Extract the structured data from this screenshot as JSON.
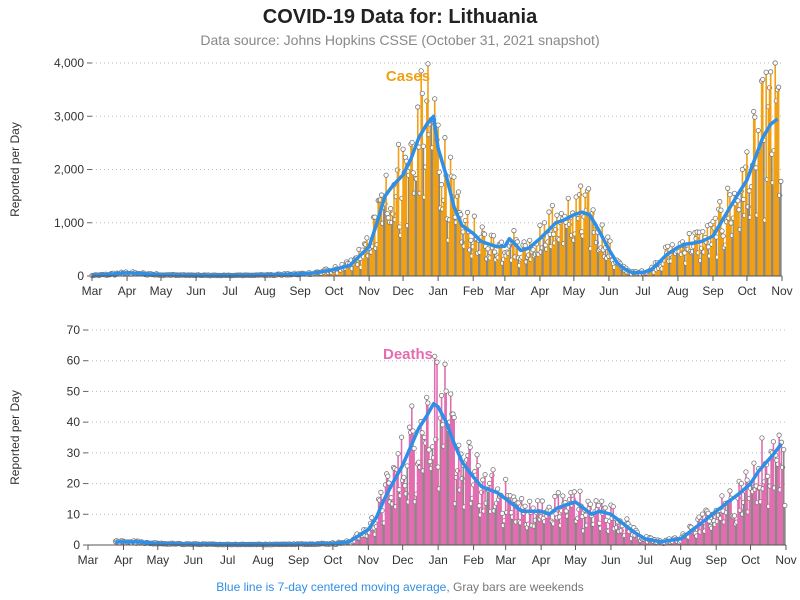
{
  "title": "COVID-19 Data for: Lithuania",
  "subtitle": "Data source: Johns Hopkins CSSE (October 31, 2021 snapshot)",
  "footnote": {
    "blue_part": "Blue line is 7-day centered moving average,",
    "gray_part": "Gray bars are weekends"
  },
  "colors": {
    "cases_bar": "#f0a015",
    "deaths_bar": "#e36db0",
    "moving_average": "#2f8fe6",
    "weekend_bar": "#888888"
  },
  "chart_data": [
    {
      "type": "bar",
      "label": "Cases",
      "label_color": "#f0a015",
      "ylabel": "Reported per Day",
      "ylim": [
        0,
        4000
      ],
      "yticks": [
        0,
        1000,
        2000,
        3000,
        4000
      ],
      "ytick_labels": [
        "0",
        "1,000",
        "2,000",
        "3,000",
        "4,000"
      ],
      "x_range": [
        "2020-03-01",
        "2021-11-01"
      ],
      "xtick_labels": [
        "Mar",
        "Apr",
        "May",
        "Jun",
        "Jul",
        "Aug",
        "Sep",
        "Oct",
        "Nov",
        "Dec",
        "Jan",
        "Feb",
        "Mar",
        "Apr",
        "May",
        "Jun",
        "Jul",
        "Aug",
        "Sep",
        "Oct",
        "Nov"
      ],
      "xtick_dates": [
        "2020-03-01",
        "2020-04-01",
        "2020-05-01",
        "2020-06-01",
        "2020-07-01",
        "2020-08-01",
        "2020-09-01",
        "2020-10-01",
        "2020-11-01",
        "2020-12-01",
        "2021-01-01",
        "2021-02-01",
        "2021-03-01",
        "2021-04-01",
        "2021-05-01",
        "2021-06-01",
        "2021-07-01",
        "2021-08-01",
        "2021-09-01",
        "2021-10-01",
        "2021-11-01"
      ],
      "moving_average": {
        "x": [
          "2020-03-01",
          "2020-03-15",
          "2020-04-01",
          "2020-04-15",
          "2020-05-01",
          "2020-06-01",
          "2020-07-01",
          "2020-08-01",
          "2020-09-01",
          "2020-09-15",
          "2020-10-01",
          "2020-10-15",
          "2020-11-01",
          "2020-11-08",
          "2020-11-15",
          "2020-11-22",
          "2020-12-01",
          "2020-12-08",
          "2020-12-15",
          "2020-12-22",
          "2020-12-28",
          "2021-01-01",
          "2021-01-08",
          "2021-01-15",
          "2021-01-22",
          "2021-02-01",
          "2021-02-08",
          "2021-02-15",
          "2021-02-22",
          "2021-03-01",
          "2021-03-05",
          "2021-03-10",
          "2021-03-15",
          "2021-03-22",
          "2021-04-01",
          "2021-04-08",
          "2021-04-15",
          "2021-04-22",
          "2021-05-01",
          "2021-05-08",
          "2021-05-15",
          "2021-05-22",
          "2021-06-01",
          "2021-06-08",
          "2021-06-15",
          "2021-06-22",
          "2021-07-01",
          "2021-07-08",
          "2021-07-15",
          "2021-07-22",
          "2021-08-01",
          "2021-08-08",
          "2021-08-15",
          "2021-08-22",
          "2021-09-01",
          "2021-09-08",
          "2021-09-15",
          "2021-09-22",
          "2021-10-01",
          "2021-10-08",
          "2021-10-15",
          "2021-10-22",
          "2021-10-28"
        ],
        "y": [
          10,
          30,
          60,
          45,
          25,
          15,
          12,
          20,
          40,
          60,
          120,
          200,
          550,
          1000,
          1500,
          1700,
          1900,
          2200,
          2600,
          2850,
          3000,
          2400,
          1900,
          1300,
          950,
          800,
          650,
          600,
          550,
          560,
          700,
          600,
          480,
          520,
          700,
          850,
          1000,
          1050,
          1150,
          1200,
          1150,
          900,
          500,
          250,
          130,
          60,
          70,
          110,
          250,
          400,
          540,
          600,
          620,
          650,
          750,
          1000,
          1250,
          1500,
          1800,
          2200,
          2600,
          2850,
          2950
        ]
      }
    },
    {
      "type": "bar",
      "label": "Deaths",
      "label_color": "#e36db0",
      "ylabel": "Reported per Day",
      "ylim": [
        0,
        70
      ],
      "yticks": [
        0,
        10,
        20,
        30,
        40,
        50,
        60,
        70
      ],
      "ytick_labels": [
        "0",
        "10",
        "20",
        "30",
        "40",
        "50",
        "60",
        "70"
      ],
      "x_range": [
        "2020-03-01",
        "2021-11-01"
      ],
      "xtick_labels": [
        "Mar",
        "Apr",
        "May",
        "Jun",
        "Jul",
        "Aug",
        "Sep",
        "Oct",
        "Nov",
        "Dec",
        "Jan",
        "Feb",
        "Mar",
        "Apr",
        "May",
        "Jun",
        "Jul",
        "Aug",
        "Sep",
        "Oct",
        "Nov"
      ],
      "xtick_dates": [
        "2020-03-01",
        "2020-04-01",
        "2020-05-01",
        "2020-06-01",
        "2020-07-01",
        "2020-08-01",
        "2020-09-01",
        "2020-10-01",
        "2020-11-01",
        "2020-12-01",
        "2021-01-01",
        "2021-02-01",
        "2021-03-01",
        "2021-04-01",
        "2021-05-01",
        "2021-06-01",
        "2021-07-01",
        "2021-08-01",
        "2021-09-01",
        "2021-10-01",
        "2021-11-01"
      ],
      "moving_average": {
        "x": [
          "2020-03-25",
          "2020-04-15",
          "2020-05-01",
          "2020-06-01",
          "2020-07-01",
          "2020-08-01",
          "2020-09-01",
          "2020-10-01",
          "2020-10-15",
          "2020-11-01",
          "2020-11-08",
          "2020-11-15",
          "2020-11-22",
          "2020-12-01",
          "2020-12-08",
          "2020-12-15",
          "2020-12-22",
          "2020-12-28",
          "2021-01-01",
          "2021-01-08",
          "2021-01-15",
          "2021-01-22",
          "2021-02-01",
          "2021-02-08",
          "2021-02-15",
          "2021-02-22",
          "2021-03-01",
          "2021-03-08",
          "2021-03-15",
          "2021-03-22",
          "2021-04-01",
          "2021-04-08",
          "2021-04-15",
          "2021-04-22",
          "2021-05-01",
          "2021-05-08",
          "2021-05-15",
          "2021-05-22",
          "2021-06-01",
          "2021-06-08",
          "2021-06-15",
          "2021-06-22",
          "2021-07-01",
          "2021-07-08",
          "2021-07-15",
          "2021-07-22",
          "2021-08-01",
          "2021-08-08",
          "2021-08-15",
          "2021-08-22",
          "2021-09-01",
          "2021-09-08",
          "2021-09-15",
          "2021-09-22",
          "2021-10-01",
          "2021-10-08",
          "2021-10-15",
          "2021-10-22",
          "2021-10-28"
        ],
        "y": [
          1,
          1,
          0.5,
          0.3,
          0.2,
          0.2,
          0.3,
          0.5,
          1,
          5,
          9,
          15,
          20,
          26,
          32,
          38,
          42,
          46,
          45,
          40,
          33,
          27,
          22,
          19,
          18,
          17,
          15,
          13,
          11,
          11,
          11,
          10,
          12,
          13,
          14,
          12,
          10,
          11,
          10,
          8,
          6,
          4,
          2,
          1.5,
          1,
          1.5,
          2,
          4,
          6,
          8,
          11,
          13,
          15,
          17,
          20,
          24,
          27,
          30,
          33
        ]
      }
    }
  ]
}
